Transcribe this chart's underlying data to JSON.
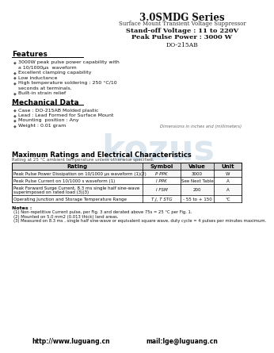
{
  "title": "3.0SMDG Series",
  "subtitle": "Surface Mount Transient Voltage Suppressor",
  "standoff": "Stand-off Voltage : 11 to 220V",
  "peak_power": "Peak Pulse Power : 3000 W",
  "package": "DO-215AB",
  "features_title": "Features",
  "features": [
    "3000W peak pulse power capability with",
    "  a 10/1000μs  waveform",
    "Excellent clamping capability",
    "Low inductance",
    "High temperature soldering : 250 °C/10",
    "  seconds at terminals.",
    "Built-in strain relief"
  ],
  "mech_title": "Mechanical Data",
  "mech": [
    "Case : DO-215AB Molded plastic",
    "Lead : Lead Formed for Surface Mount",
    "Mounting  position : Any",
    "Weight : 0.01 gram"
  ],
  "dim_note": "Dimensions in inches and (millimeters)",
  "table_title": "Maximum Ratings and Electrical Characteristics",
  "table_subtitle": "Rating at 25 °C ambient temperature unless otherwise specified.",
  "table_headers": [
    "Rating",
    "Symbol",
    "Value",
    "Unit"
  ],
  "table_rows": [
    [
      "Peak Pulse Power Dissipation on 10/1000 μs waveform (1)(2)",
      "P PPK",
      "3000",
      "W"
    ],
    [
      "Peak Pulse Current on 10/1000 s waveform (1)",
      "I PPK",
      "See Next Table",
      "A"
    ],
    [
      "Peak Forward Surge Current, 8.3 ms single half sine-wave\nsuperimposed on rated load (3)(3)",
      "I FSM",
      "200",
      "A"
    ],
    [
      "Operating Junction and Storage Temperature Range",
      "T J, T STG",
      "- 55 to + 150",
      "°C"
    ]
  ],
  "notes_title": "Notes :",
  "notes": [
    "(1) Non-repetitive Current pulse, per Fig. 3 and derated above 75s = 25 °C per Fig. 1.",
    "(2) Mounted on 5.0 mm2 (0.013 thick) land areas.",
    "(3) Measured on 8.3 ms , single half sine-wave or equivalent square wave, duty cycle = 4 pulses per minutes maximum."
  ],
  "footer_web": "http://www.luguang.cn",
  "footer_mail": "mail:lge@luguang.cn",
  "watermark": "kozus",
  "bg_color": "#ffffff"
}
